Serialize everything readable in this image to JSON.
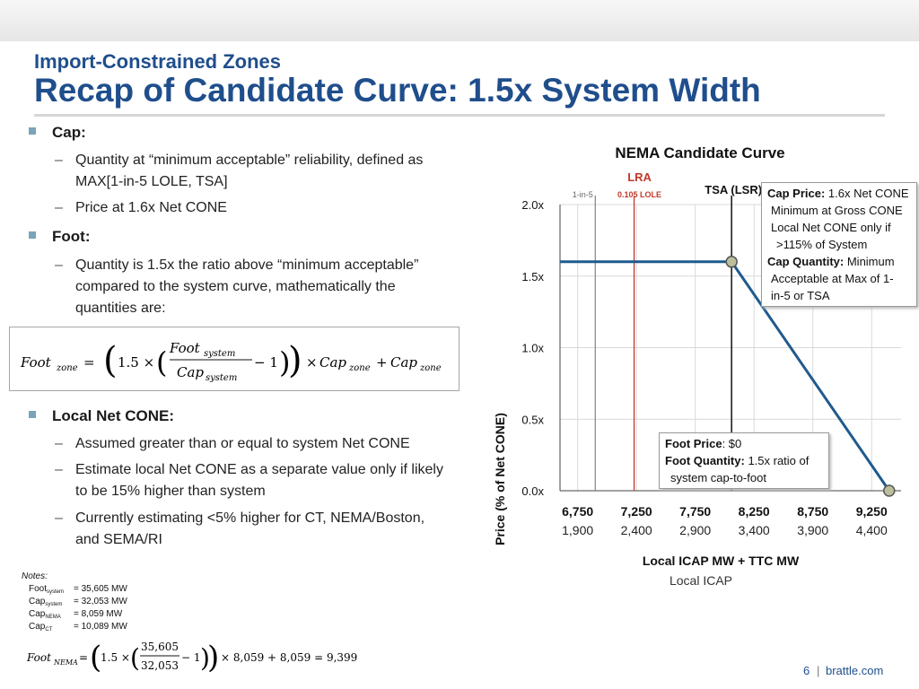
{
  "header": {
    "subtitle": "Import-Constrained Zones",
    "title": "Recap of Candidate Curve: 1.5x System Width"
  },
  "bullets": {
    "cap": {
      "label": "Cap:",
      "items": [
        "Quantity at “minimum acceptable” reliability, defined as",
        "MAX[1-in-5 LOLE, TSA]",
        "Price at 1.6x Net CONE"
      ]
    },
    "foot": {
      "label": "Foot:",
      "items": [
        "Quantity is 1.5x the ratio above “minimum acceptable”",
        "compared to the system curve, mathematically the",
        "quantities are:"
      ]
    },
    "local": {
      "label": "Local Net CONE:",
      "items": [
        "Assumed greater than or equal to system Net CONE",
        "Estimate local Net CONE as a separate value only if likely",
        "to be 15% higher than system",
        "Currently estimating <5% higher for CT, NEMA/Boston,",
        "and SEMA/RI"
      ]
    }
  },
  "formula": {
    "lhs": "Foot",
    "lhs_sub": "zone",
    "eq": "=",
    "coef": "1.5 ×",
    "num": "Foot",
    "num_sub": "system",
    "den": "Cap",
    "den_sub": "system",
    "minus": "− 1",
    "times": "×",
    "cap": "Cap",
    "cap_sub": "zone",
    "plus": "+",
    "cap2": "Cap",
    "cap2_sub": "zone"
  },
  "notes": {
    "label": "Notes:",
    "rows": [
      {
        "k": "Foot",
        "sub": "system",
        "v": "= 35,605 MW"
      },
      {
        "k": "Cap",
        "sub": "system",
        "v": "= 32,053 MW"
      },
      {
        "k": "Cap",
        "sub": "NEMA",
        "v": "= 8,059 MW"
      },
      {
        "k": "Cap",
        "sub": "CT",
        "v": "= 10,089 MW"
      }
    ],
    "formula": {
      "lhs": "Foot",
      "lhs_sub": "NEMA",
      "eq": "=",
      "coef": "1.5 ×",
      "num": "35,605",
      "den": "32,053",
      "minus": "− 1",
      "rest": "× 8,059 + 8,059 = 9,399"
    }
  },
  "chart_data": {
    "type": "line",
    "title": "NEMA Candidate Curve",
    "xlabel": "Local ICAP MW + TTC MW",
    "xlabel2": "Local ICAP",
    "ylabel": "Price (% of Net CONE)",
    "x_ticks": [
      "6,750",
      "7,250",
      "7,750",
      "8,250",
      "8,750",
      "9,250"
    ],
    "x_ticks2": [
      "1,900",
      "2,400",
      "2,900",
      "3,400",
      "3,900",
      "4,400"
    ],
    "x_tick_values": [
      6750,
      7250,
      7750,
      8250,
      8750,
      9250
    ],
    "y_ticks": [
      "0.0x",
      "0.5x",
      "1.0x",
      "1.5x",
      "2.0x"
    ],
    "y_tick_values": [
      0,
      0.5,
      1.0,
      1.5,
      2.0
    ],
    "xlim": [
      6600,
      9500
    ],
    "ylim": [
      0,
      2.0
    ],
    "series": [
      {
        "points": [
          [
            6600,
            1.6
          ],
          [
            8059,
            1.6
          ],
          [
            9399,
            0
          ]
        ],
        "color": "#1f5a8e"
      }
    ],
    "vlines": [
      {
        "x": 6900,
        "label": "1-in-5",
        "color": "#8c8c8c"
      },
      {
        "x": 7230,
        "label": "0.105 LOLE",
        "label_top": "LRA",
        "color": "#c0392b"
      },
      {
        "x": 8059,
        "label": "TSA (LSR)",
        "color": "#111111"
      }
    ],
    "markers": [
      [
        8059,
        1.6
      ],
      [
        9399,
        0
      ]
    ],
    "annotations": {
      "cap": {
        "title": "Cap Price:",
        "title_rest": " 1.6x Net CONE",
        "lines": [
          "Minimum at Gross CONE",
          "Local Net CONE only if",
          ">115% of System"
        ],
        "qty_title": "Cap Quantity:",
        "qty_rest": " Minimum",
        "qty_lines": [
          "Acceptable at Max of 1-",
          "in-5 or TSA"
        ]
      },
      "foot": {
        "title": "Foot Price",
        "title_rest": ": $0",
        "qty_title": "Foot Quantity:",
        "qty_rest": " 1.5x ratio of",
        "qty_lines": [
          "system cap-to-foot"
        ]
      }
    }
  },
  "footer": {
    "page": "6",
    "sep": "|",
    "brand": "brattle.com"
  }
}
